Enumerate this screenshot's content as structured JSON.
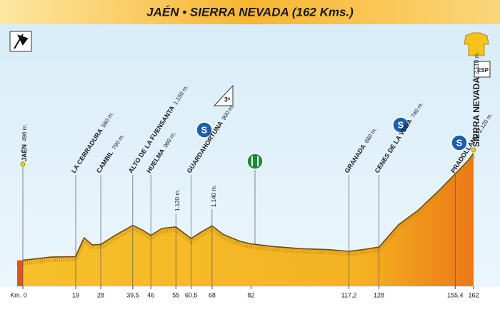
{
  "chart_data": {
    "type": "area",
    "title": "JAÉN • SIERRA NEVADA (162 Kms.)",
    "x": [
      0,
      10,
      19,
      22,
      25,
      28,
      33,
      39.5,
      43,
      46,
      50,
      55,
      60.5,
      64,
      68,
      72,
      78,
      82,
      90,
      100,
      110,
      117.2,
      122,
      128,
      135,
      142,
      150,
      155.4,
      160,
      162
    ],
    "values": [
      490,
      550,
      560,
      915,
      780,
      790,
      955,
      1150,
      1060,
      960,
      1090,
      1120,
      900,
      1020,
      1140,
      980,
      850,
      800,
      750,
      710,
      690,
      660,
      690,
      740,
      1160,
      1430,
      1830,
      2120,
      2370,
      2510
    ],
    "color": "#f2b01e",
    "xlim": [
      0,
      162
    ],
    "ylim": [
      0,
      4860
    ],
    "xticks": [
      {
        "value": 0,
        "label": "Km. 0"
      },
      19,
      28,
      {
        "value": 39.5,
        "label": "39,5"
      },
      46,
      55,
      {
        "value": 60.5,
        "label": "60,5"
      },
      68,
      82,
      {
        "value": 117.2,
        "label": "117,2"
      },
      128,
      {
        "value": 155.4,
        "label": "155,4"
      },
      162
    ],
    "annotations": [
      {
        "x": 0,
        "name": "JAÉN",
        "elevation": "490 m."
      },
      {
        "x": 19,
        "name": "LA CERRADURA",
        "elevation": "560 m."
      },
      {
        "x": 28,
        "name": "CAMBIL",
        "elevation": "790 m."
      },
      {
        "x": 39.5,
        "name": "ALTO DE LA FUENSANTA",
        "elevation": "1.150 m."
      },
      {
        "x": 46,
        "name": "HUELMA",
        "elevation": "960 m."
      },
      {
        "x": 55,
        "elevation": "1.120 m."
      },
      {
        "x": 60.5,
        "name": "GUARDAHORTUNA",
        "elevation": "900 m."
      },
      {
        "x": 68,
        "elevation": "1.140 m."
      },
      {
        "x": 117.2,
        "name": "GRANADA",
        "elevation": "660 m."
      },
      {
        "x": 128,
        "name": "CENES DE LA VEGA",
        "elevation": "740 m."
      },
      {
        "x": 155.4,
        "name": "PRADOLLANO",
        "elevation": "2.120 m."
      },
      {
        "x": 162,
        "name": "SIERRA NEVADA",
        "elevation": "2.510 m."
      }
    ],
    "climb_category": "3ª",
    "finish_category": "ESP",
    "sprint_icon": "S"
  }
}
